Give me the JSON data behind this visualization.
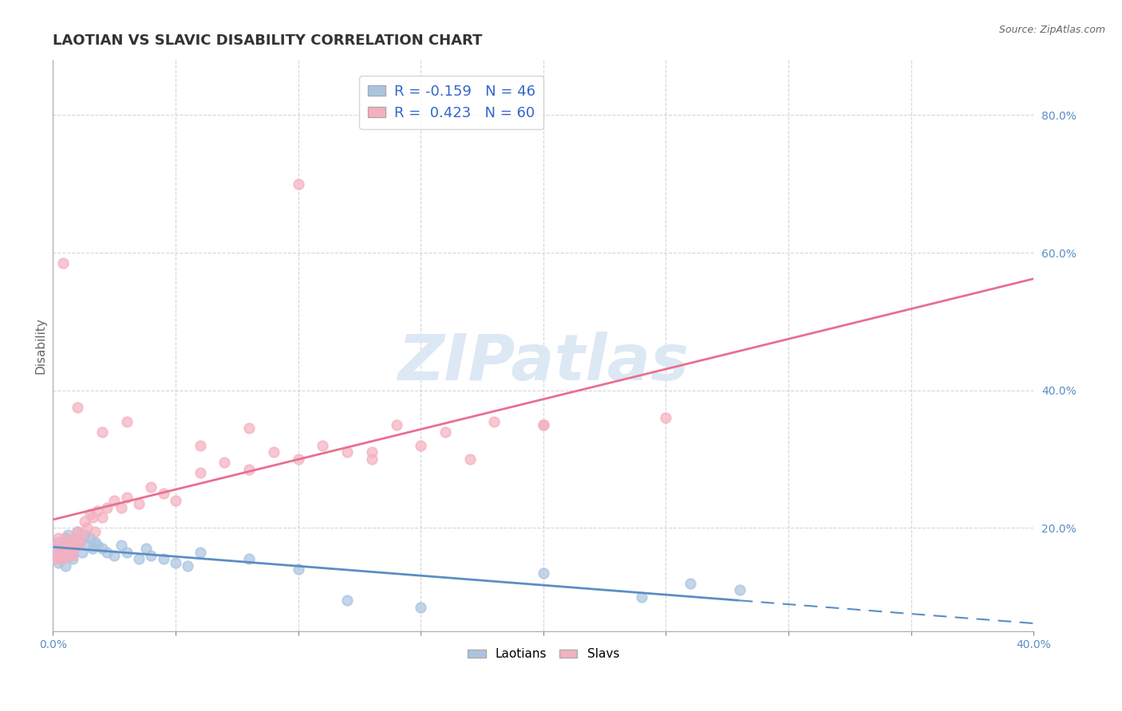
{
  "title": "LAOTIAN VS SLAVIC DISABILITY CORRELATION CHART",
  "source": "Source: ZipAtlas.com",
  "ylabel": "Disability",
  "xlim": [
    0.0,
    0.4
  ],
  "ylim": [
    0.05,
    0.88
  ],
  "laotian_R": -0.159,
  "laotian_N": 46,
  "slavic_R": 0.423,
  "slavic_N": 60,
  "laotian_color": "#aac4e0",
  "slavic_color": "#f4b0c0",
  "laotian_line_color": "#5b8ec4",
  "slavic_line_color": "#e87090",
  "laotian_line_solid_end": 0.28,
  "watermark_text": "ZIPatlas",
  "background_color": "#ffffff",
  "ytick_color": "#5b8ec4",
  "xtick_color": "#5b8ec4",
  "grid_color": "#cccccc",
  "laotian_x": [
    0.001,
    0.002,
    0.002,
    0.003,
    0.003,
    0.004,
    0.004,
    0.005,
    0.005,
    0.006,
    0.006,
    0.007,
    0.007,
    0.008,
    0.008,
    0.009,
    0.01,
    0.01,
    0.011,
    0.012,
    0.013,
    0.014,
    0.015,
    0.016,
    0.017,
    0.018,
    0.02,
    0.022,
    0.025,
    0.028,
    0.03,
    0.035,
    0.038,
    0.04,
    0.045,
    0.05,
    0.055,
    0.06,
    0.08,
    0.1,
    0.12,
    0.15,
    0.2,
    0.24,
    0.26,
    0.28
  ],
  "laotian_y": [
    0.17,
    0.15,
    0.18,
    0.165,
    0.155,
    0.175,
    0.16,
    0.145,
    0.185,
    0.17,
    0.19,
    0.16,
    0.175,
    0.165,
    0.155,
    0.185,
    0.175,
    0.195,
    0.18,
    0.165,
    0.19,
    0.175,
    0.185,
    0.17,
    0.18,
    0.175,
    0.17,
    0.165,
    0.16,
    0.175,
    0.165,
    0.155,
    0.17,
    0.16,
    0.155,
    0.15,
    0.145,
    0.165,
    0.155,
    0.14,
    0.095,
    0.085,
    0.135,
    0.1,
    0.12,
    0.11
  ],
  "slavic_x": [
    0.001,
    0.001,
    0.002,
    0.002,
    0.003,
    0.003,
    0.004,
    0.004,
    0.005,
    0.005,
    0.006,
    0.006,
    0.007,
    0.007,
    0.008,
    0.008,
    0.009,
    0.01,
    0.01,
    0.011,
    0.012,
    0.013,
    0.014,
    0.015,
    0.016,
    0.017,
    0.018,
    0.02,
    0.022,
    0.025,
    0.028,
    0.03,
    0.035,
    0.04,
    0.045,
    0.05,
    0.06,
    0.07,
    0.08,
    0.09,
    0.1,
    0.11,
    0.12,
    0.13,
    0.14,
    0.15,
    0.16,
    0.17,
    0.18,
    0.2,
    0.004,
    0.01,
    0.02,
    0.03,
    0.06,
    0.08,
    0.1,
    0.13,
    0.2,
    0.25
  ],
  "slavic_y": [
    0.175,
    0.155,
    0.16,
    0.185,
    0.17,
    0.165,
    0.155,
    0.175,
    0.16,
    0.185,
    0.17,
    0.175,
    0.165,
    0.18,
    0.17,
    0.16,
    0.185,
    0.175,
    0.195,
    0.18,
    0.19,
    0.21,
    0.2,
    0.22,
    0.215,
    0.195,
    0.225,
    0.215,
    0.23,
    0.24,
    0.23,
    0.245,
    0.235,
    0.26,
    0.25,
    0.24,
    0.28,
    0.295,
    0.285,
    0.31,
    0.3,
    0.32,
    0.31,
    0.3,
    0.35,
    0.32,
    0.34,
    0.3,
    0.355,
    0.35,
    0.585,
    0.375,
    0.34,
    0.355,
    0.32,
    0.345,
    0.7,
    0.31,
    0.35,
    0.36
  ]
}
